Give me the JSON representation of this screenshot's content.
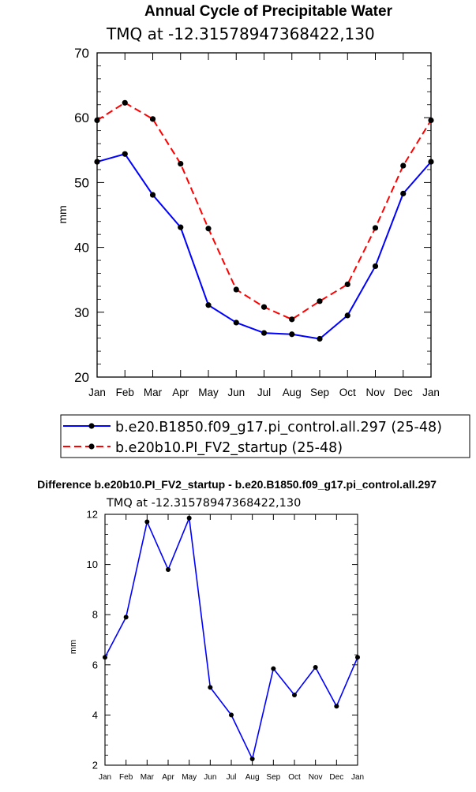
{
  "chart_data": [
    {
      "type": "line",
      "title": "Annual Cycle of Precipitable Water",
      "subtitle": "TMQ at -12.31578947368422,130",
      "xlabel": "",
      "ylabel": "mm",
      "ylim": [
        20,
        70
      ],
      "yticks": [
        20,
        30,
        40,
        50,
        60,
        70
      ],
      "categories": [
        "Jan",
        "Feb",
        "Mar",
        "Apr",
        "May",
        "Jun",
        "Jul",
        "Aug",
        "Sep",
        "Oct",
        "Nov",
        "Dec",
        "Jan"
      ],
      "legend_position": "bottom",
      "series": [
        {
          "name": "b.e20.B1850.f09_g17.pi_control.all.297 (25-48)",
          "color": "#0000ff",
          "dash": "solid",
          "values": [
            53.2,
            54.4,
            48.1,
            43.1,
            31.1,
            28.4,
            26.8,
            26.6,
            25.9,
            29.5,
            37.1,
            48.3,
            53.2
          ]
        },
        {
          "name": "b.e20b10.PI_FV2_startup (25-48)",
          "color": "#ff0000",
          "dash": "dashed",
          "values": [
            59.6,
            62.3,
            59.8,
            52.9,
            42.9,
            33.5,
            30.8,
            28.9,
            31.7,
            34.3,
            43.0,
            52.6,
            59.6
          ]
        }
      ]
    },
    {
      "type": "line",
      "title": "Difference b.e20b10.PI_FV2_startup - b.e20.B1850.f09_g17.pi_control.all.297",
      "subtitle": "TMQ at -12.31578947368422,130",
      "xlabel": "",
      "ylabel": "mm",
      "ylim": [
        2,
        12
      ],
      "yticks": [
        2,
        4,
        6,
        8,
        10,
        12
      ],
      "categories": [
        "Jan",
        "Feb",
        "Mar",
        "Apr",
        "May",
        "Jun",
        "Jul",
        "Aug",
        "Sep",
        "Oct",
        "Nov",
        "Dec",
        "Jan"
      ],
      "series": [
        {
          "color": "#0000ff",
          "dash": "solid",
          "values": [
            6.3,
            7.9,
            11.7,
            9.8,
            11.85,
            5.1,
            4.0,
            2.25,
            5.85,
            4.8,
            5.9,
            4.35,
            6.3
          ]
        }
      ]
    }
  ]
}
